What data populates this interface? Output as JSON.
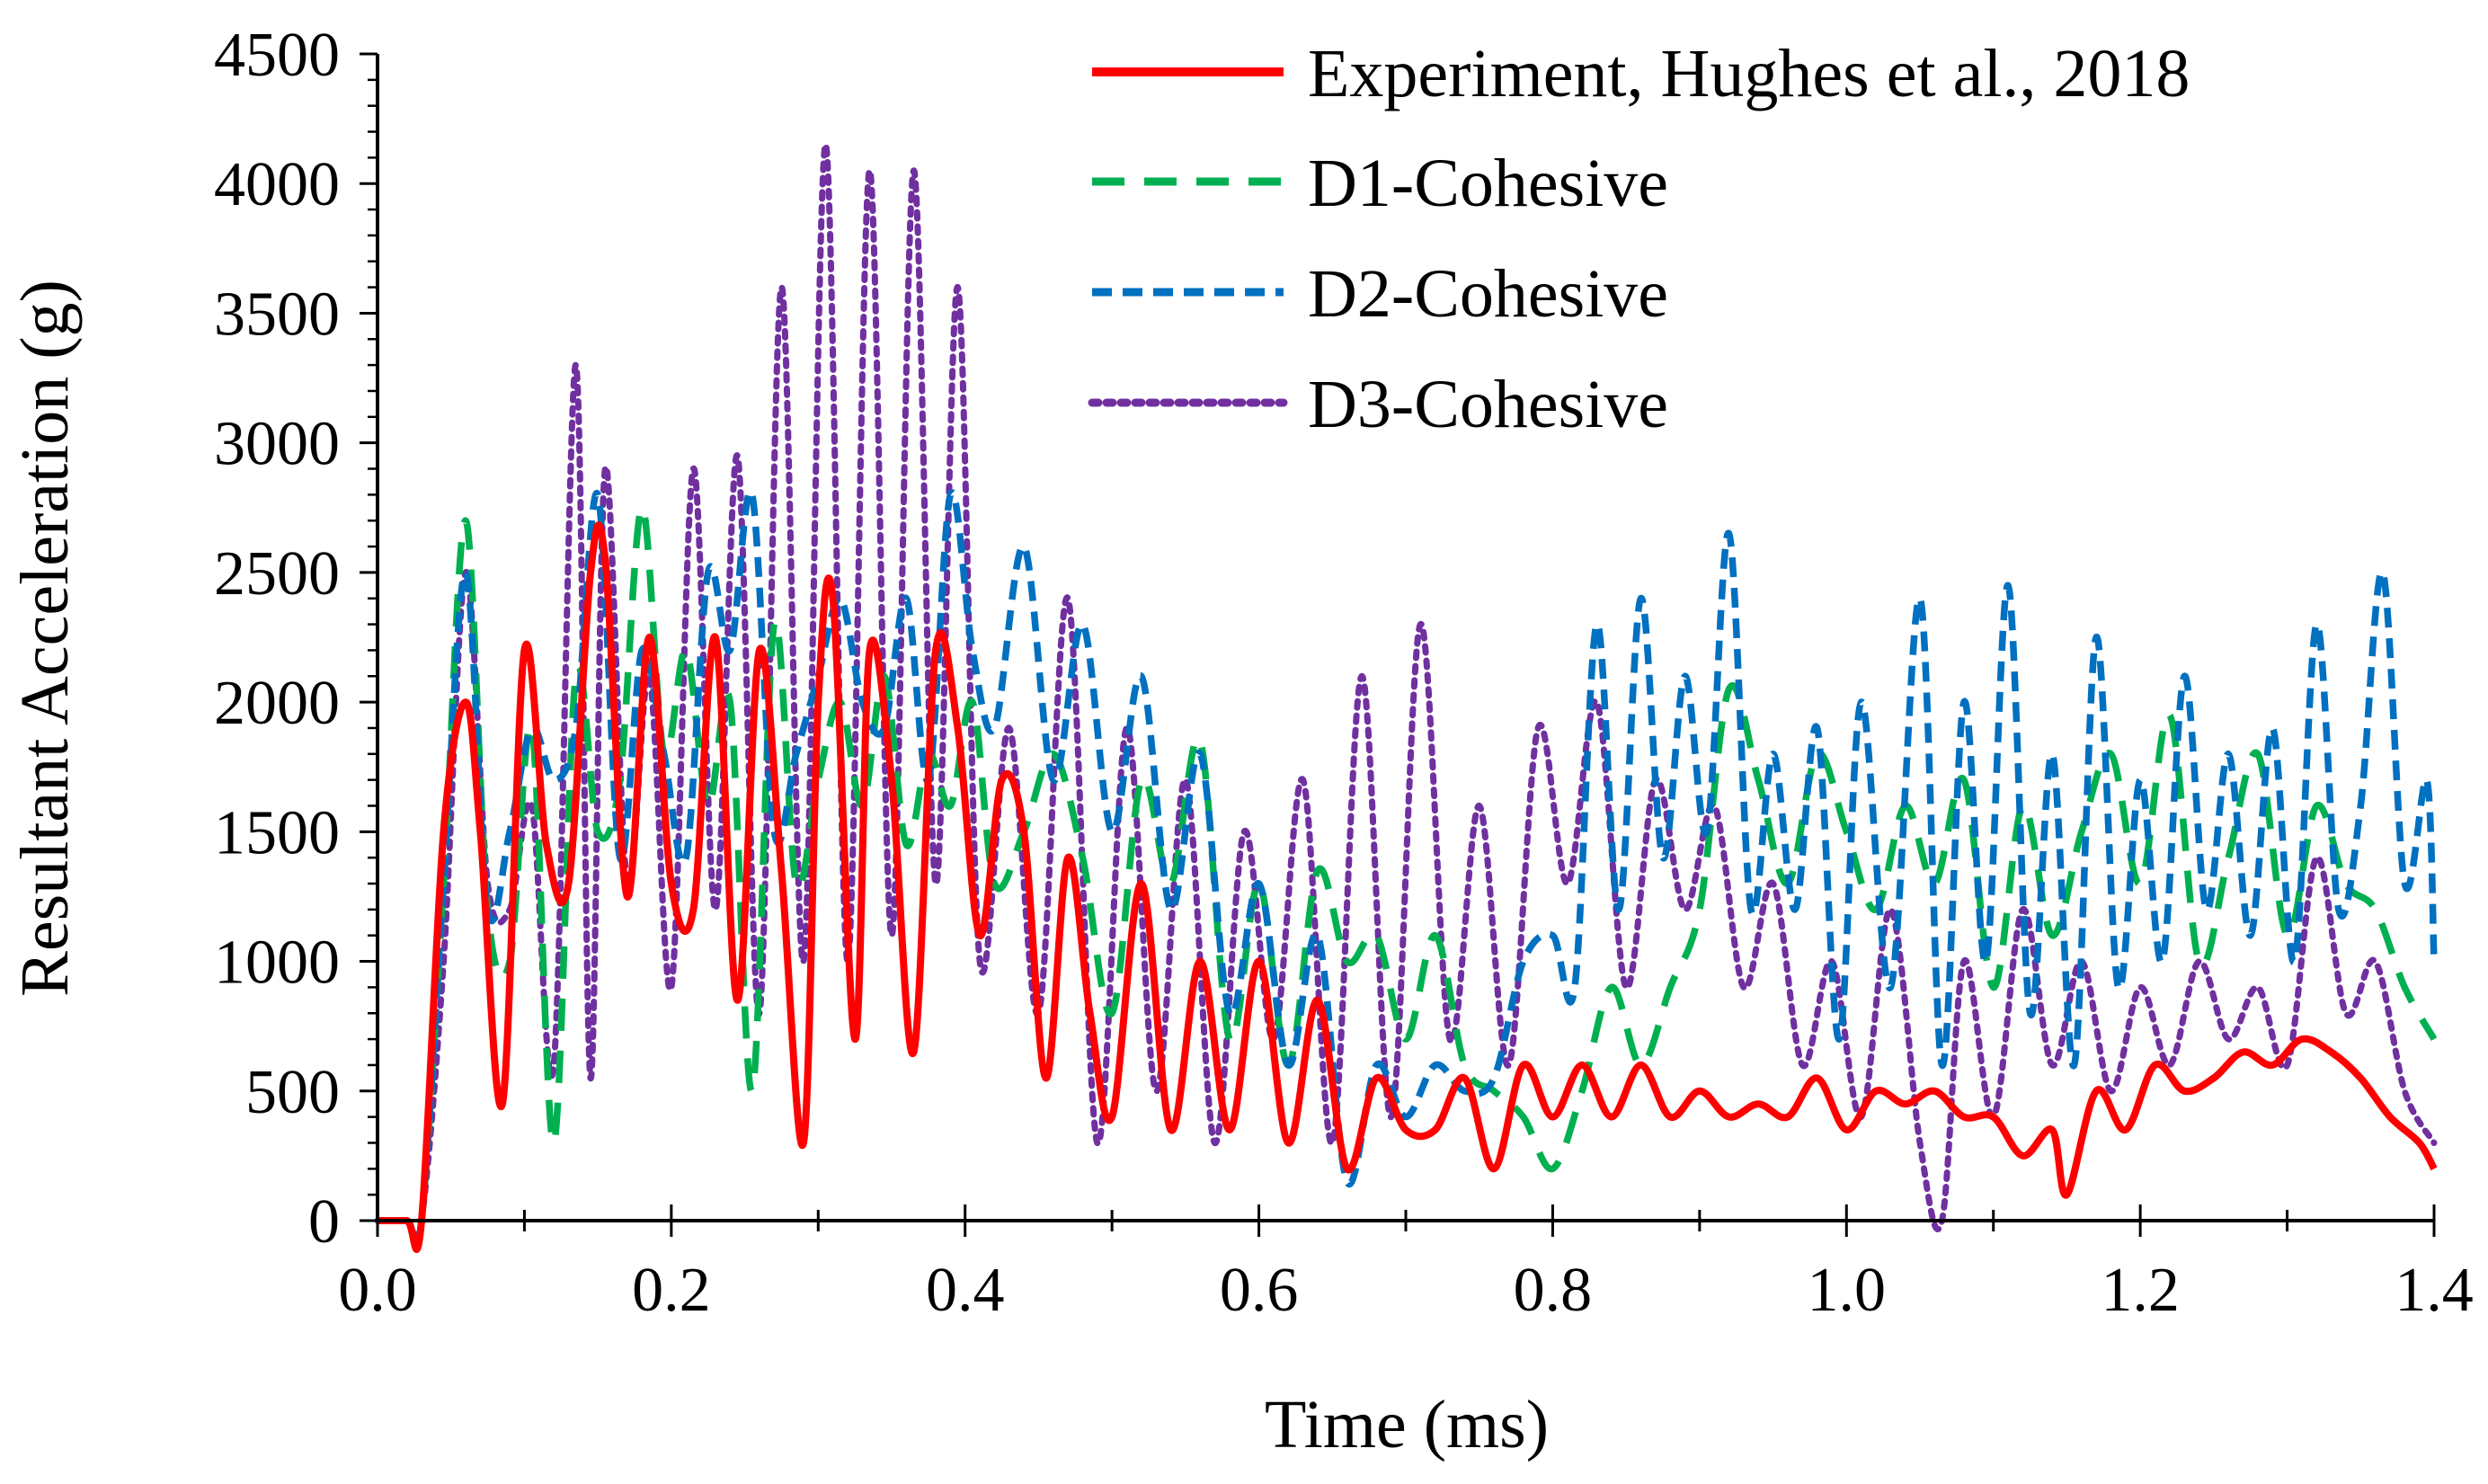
{
  "chart_data": {
    "type": "line",
    "title": "",
    "xlabel": "Time  (ms)",
    "ylabel": "Resultant Acceleration  (g)",
    "xlim": [
      0.0,
      1.4
    ],
    "ylim": [
      0,
      4500
    ],
    "x_ticks": [
      "0.0",
      "0.2",
      "0.4",
      "0.6",
      "0.8",
      "1.0",
      "1.2",
      "1.4"
    ],
    "y_ticks": [
      "0",
      "500",
      "1000",
      "1500",
      "2000",
      "2500",
      "3000",
      "3500",
      "4000",
      "4500"
    ],
    "grid": false,
    "legend_position": "top-right",
    "series": [
      {
        "name": "Experiment, Hughes et al., 2018",
        "color": "#ff0000",
        "dash": "solid",
        "x": [
          0,
          0.02,
          0.03,
          0.045,
          0.06,
          0.07,
          0.085,
          0.1,
          0.115,
          0.13,
          0.145,
          0.155,
          0.17,
          0.185,
          0.2,
          0.215,
          0.23,
          0.245,
          0.26,
          0.275,
          0.29,
          0.3,
          0.31,
          0.325,
          0.335,
          0.35,
          0.365,
          0.38,
          0.395,
          0.41,
          0.425,
          0.44,
          0.455,
          0.47,
          0.485,
          0.5,
          0.52,
          0.54,
          0.56,
          0.58,
          0.6,
          0.62,
          0.64,
          0.66,
          0.68,
          0.7,
          0.72,
          0.74,
          0.76,
          0.78,
          0.8,
          0.82,
          0.84,
          0.86,
          0.88,
          0.9,
          0.92,
          0.94,
          0.96,
          0.98,
          1.0,
          1.02,
          1.04,
          1.06,
          1.08,
          1.1,
          1.12,
          1.14,
          1.15,
          1.17,
          1.19,
          1.21,
          1.23,
          1.25,
          1.27,
          1.29,
          1.31,
          1.33,
          1.35,
          1.37,
          1.39,
          1.4
        ],
        "y": [
          0,
          0,
          0,
          1500,
          2000,
          1500,
          450,
          2200,
          1450,
          1300,
          2500,
          2550,
          1250,
          2250,
          1300,
          1200,
          2250,
          850,
          2200,
          1350,
          300,
          2000,
          2400,
          700,
          2200,
          1700,
          650,
          2200,
          1900,
          1100,
          1700,
          1500,
          550,
          1400,
          800,
          400,
          1300,
          350,
          1000,
          350,
          1000,
          300,
          850,
          200,
          550,
          350,
          350,
          550,
          200,
          600,
          400,
          600,
          400,
          600,
          400,
          500,
          400,
          450,
          400,
          550,
          350,
          500,
          450,
          500,
          400,
          400,
          250,
          350,
          100,
          500,
          350,
          600,
          500,
          550,
          650,
          600,
          700,
          650,
          550,
          400,
          300,
          200
        ]
      },
      {
        "name": "D1-Cohesive",
        "color": "#00b050",
        "dash": "36 22",
        "x": [
          0,
          0.02,
          0.03,
          0.045,
          0.06,
          0.075,
          0.09,
          0.105,
          0.12,
          0.135,
          0.15,
          0.165,
          0.18,
          0.195,
          0.21,
          0.225,
          0.24,
          0.255,
          0.27,
          0.285,
          0.3,
          0.315,
          0.33,
          0.345,
          0.36,
          0.375,
          0.39,
          0.405,
          0.42,
          0.44,
          0.46,
          0.48,
          0.5,
          0.52,
          0.54,
          0.56,
          0.58,
          0.6,
          0.62,
          0.64,
          0.66,
          0.68,
          0.7,
          0.72,
          0.74,
          0.76,
          0.78,
          0.8,
          0.82,
          0.84,
          0.86,
          0.88,
          0.9,
          0.92,
          0.94,
          0.96,
          0.98,
          1.0,
          1.02,
          1.04,
          1.06,
          1.08,
          1.1,
          1.12,
          1.14,
          1.16,
          1.18,
          1.2,
          1.22,
          1.24,
          1.26,
          1.28,
          1.3,
          1.32,
          1.34,
          1.36,
          1.38,
          1.4
        ],
        "y": [
          0,
          0,
          0,
          1300,
          2700,
          1200,
          1000,
          1900,
          300,
          2100,
          1500,
          1700,
          2750,
          1800,
          2200,
          1600,
          2000,
          500,
          2300,
          1300,
          1700,
          2000,
          1600,
          2100,
          1450,
          1800,
          1600,
          2000,
          1300,
          1500,
          1800,
          1400,
          800,
          1700,
          1300,
          1850,
          700,
          1300,
          600,
          1350,
          1000,
          1100,
          700,
          1100,
          600,
          500,
          400,
          200,
          500,
          900,
          600,
          900,
          1200,
          2050,
          1700,
          1300,
          1800,
          1500,
          1200,
          1600,
          1300,
          1700,
          900,
          1600,
          1100,
          1500,
          1800,
          1300,
          1950,
          1000,
          1400,
          1800,
          1100,
          1600,
          1300,
          1200,
          900,
          700
        ]
      },
      {
        "name": "D2-Cohesive",
        "color": "#0070c0",
        "dash": "22 12",
        "x": [
          0,
          0.02,
          0.03,
          0.045,
          0.06,
          0.075,
          0.09,
          0.105,
          0.12,
          0.135,
          0.15,
          0.165,
          0.18,
          0.195,
          0.21,
          0.225,
          0.24,
          0.255,
          0.27,
          0.285,
          0.3,
          0.315,
          0.33,
          0.345,
          0.36,
          0.375,
          0.39,
          0.405,
          0.42,
          0.44,
          0.46,
          0.48,
          0.5,
          0.52,
          0.54,
          0.56,
          0.58,
          0.6,
          0.62,
          0.64,
          0.66,
          0.68,
          0.7,
          0.72,
          0.74,
          0.76,
          0.78,
          0.8,
          0.815,
          0.83,
          0.845,
          0.86,
          0.875,
          0.89,
          0.905,
          0.92,
          0.935,
          0.95,
          0.965,
          0.98,
          0.995,
          1.01,
          1.03,
          1.05,
          1.065,
          1.08,
          1.095,
          1.11,
          1.125,
          1.14,
          1.155,
          1.17,
          1.185,
          1.2,
          1.215,
          1.23,
          1.245,
          1.26,
          1.275,
          1.29,
          1.305,
          1.32,
          1.335,
          1.35,
          1.365,
          1.38,
          1.395,
          1.4
        ],
        "y": [
          0,
          0,
          0,
          1300,
          2500,
          1200,
          1500,
          1900,
          1700,
          1900,
          2800,
          1400,
          2200,
          1800,
          1400,
          2500,
          2200,
          2800,
          1500,
          1800,
          2100,
          2400,
          2000,
          1900,
          2400,
          1700,
          2800,
          2200,
          1900,
          2600,
          1700,
          2300,
          1500,
          2100,
          1200,
          1800,
          800,
          1300,
          600,
          1100,
          150,
          600,
          400,
          600,
          500,
          550,
          1000,
          1100,
          900,
          2300,
          1200,
          2400,
          1400,
          2100,
          1500,
          2650,
          1200,
          1800,
          1200,
          1900,
          700,
          2000,
          900,
          2400,
          600,
          2000,
          1000,
          2450,
          800,
          1800,
          600,
          2250,
          900,
          1700,
          1000,
          2100,
          1200,
          1800,
          1100,
          1900,
          1000,
          2300,
          1200,
          1600,
          2500,
          1300,
          1700,
          1000
        ]
      },
      {
        "name": "D3-Cohesive",
        "color": "#7030a0",
        "dash": "7 9",
        "x": [
          0,
          0.02,
          0.03,
          0.045,
          0.06,
          0.075,
          0.09,
          0.105,
          0.12,
          0.135,
          0.145,
          0.155,
          0.17,
          0.185,
          0.2,
          0.215,
          0.23,
          0.245,
          0.26,
          0.275,
          0.29,
          0.305,
          0.32,
          0.335,
          0.35,
          0.365,
          0.38,
          0.395,
          0.41,
          0.43,
          0.45,
          0.47,
          0.49,
          0.51,
          0.53,
          0.55,
          0.57,
          0.59,
          0.61,
          0.63,
          0.65,
          0.67,
          0.69,
          0.71,
          0.73,
          0.75,
          0.77,
          0.79,
          0.81,
          0.83,
          0.85,
          0.87,
          0.89,
          0.91,
          0.93,
          0.95,
          0.97,
          0.99,
          1.01,
          1.03,
          1.05,
          1.065,
          1.08,
          1.1,
          1.12,
          1.14,
          1.16,
          1.18,
          1.2,
          1.22,
          1.24,
          1.26,
          1.28,
          1.3,
          1.32,
          1.34,
          1.36,
          1.38,
          1.4
        ],
        "y": [
          0,
          0,
          0,
          1000,
          2500,
          1300,
          1200,
          1600,
          600,
          3300,
          550,
          2900,
          1300,
          2100,
          900,
          2900,
          1200,
          2950,
          800,
          3600,
          1000,
          4150,
          1000,
          4050,
          1100,
          4050,
          1300,
          3600,
          1000,
          1900,
          800,
          2400,
          300,
          1900,
          500,
          1700,
          300,
          1500,
          700,
          1700,
          300,
          2100,
          400,
          2300,
          700,
          1600,
          600,
          1900,
          1300,
          2000,
          900,
          1700,
          1200,
          1600,
          900,
          1300,
          600,
          1000,
          400,
          1200,
          300,
          0,
          1000,
          400,
          1200,
          600,
          1000,
          500,
          900,
          600,
          1000,
          700,
          900,
          600,
          1400,
          800,
          1000,
          500,
          300
        ]
      }
    ]
  }
}
